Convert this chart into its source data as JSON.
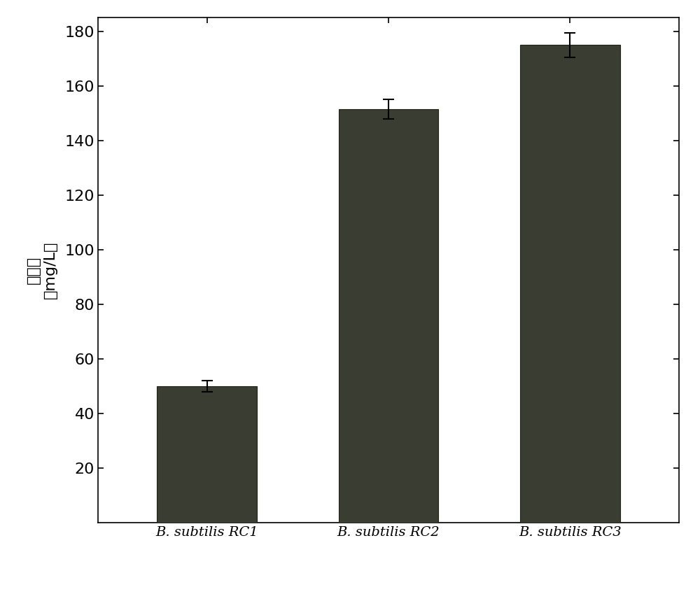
{
  "categories": [
    "B. subtilis RC1",
    "B. subtilis RC2",
    "B. subtilis RC3"
  ],
  "values": [
    50.0,
    151.5,
    175.0
  ],
  "errors": [
    2.0,
    3.5,
    4.5
  ],
  "bar_color": "#3a3d32",
  "bar_edge_color": "#222218",
  "ylim": [
    0,
    185
  ],
  "yticks": [
    20,
    40,
    60,
    80,
    100,
    120,
    140,
    160,
    180
  ],
  "background_color": "#ffffff",
  "plot_bg_color": "#ffffff",
  "bar_width": 0.55,
  "figsize": [
    10.0,
    8.49
  ],
  "ylabel_top": "（mg/L）",
  "ylabel_bottom": "核黄素",
  "tick_fontsize": 16,
  "label_fontsize": 16,
  "xtick_fontsize": 14
}
